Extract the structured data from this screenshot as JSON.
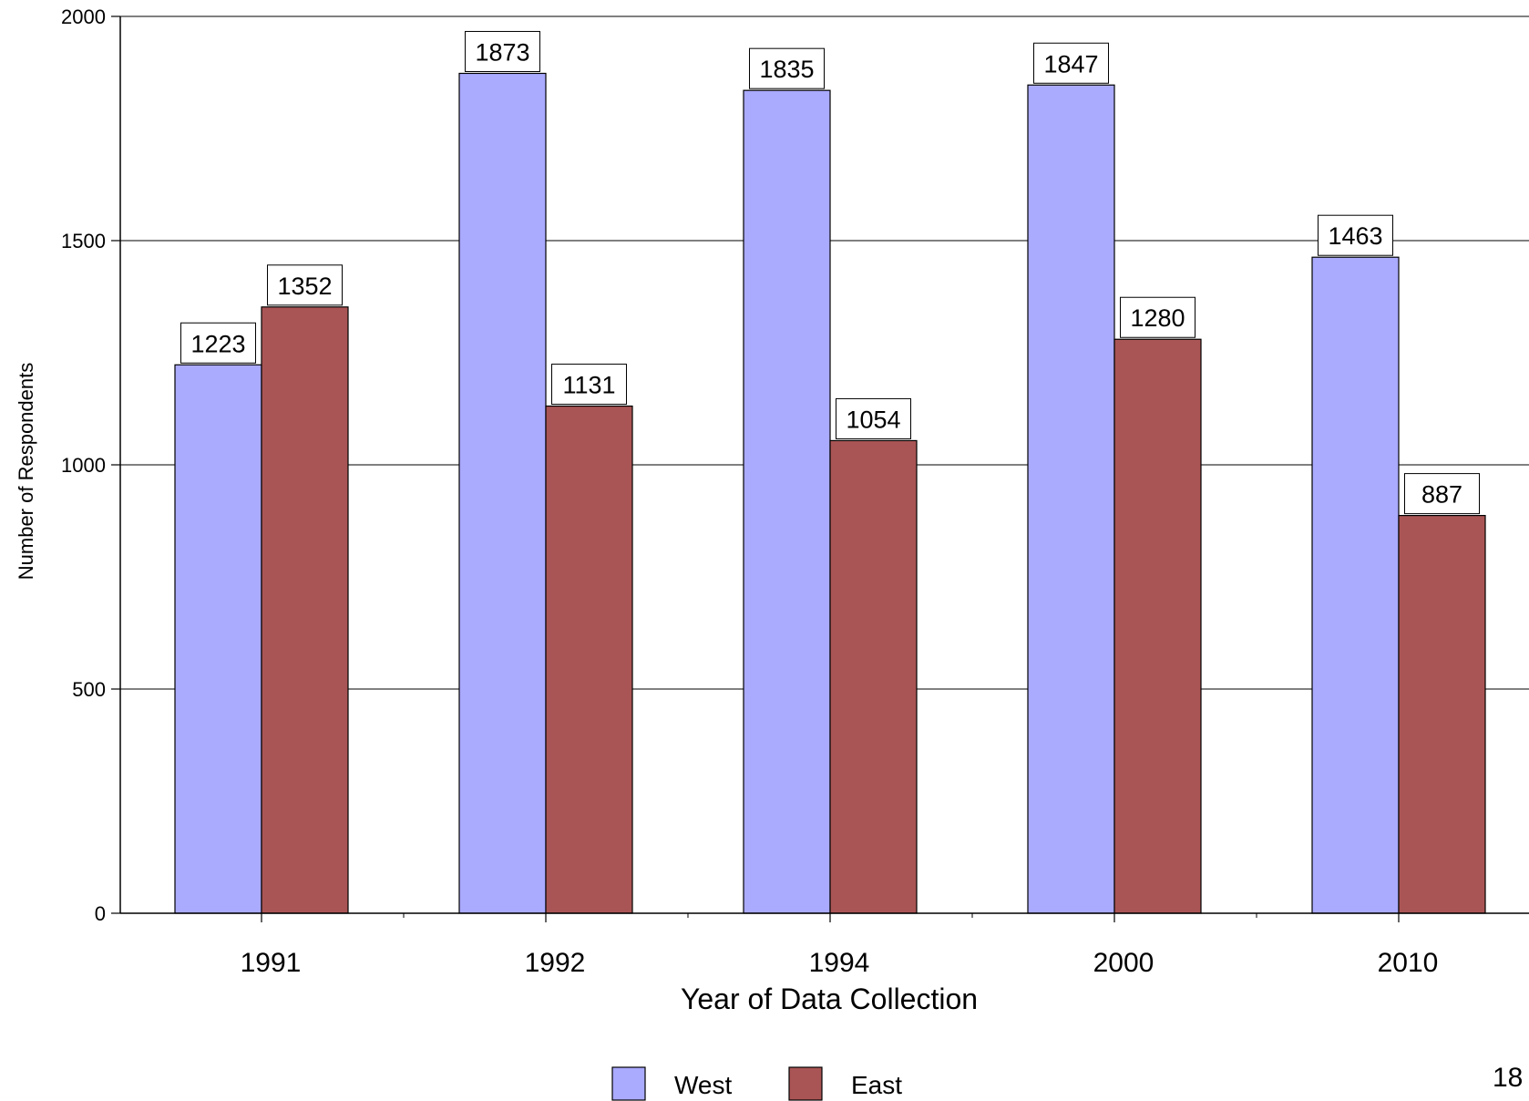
{
  "chart_data": {
    "type": "bar",
    "title": "",
    "xlabel": "Year of Data Collection",
    "ylabel": "Number of Respondents",
    "categories": [
      "1991",
      "1992",
      "1994",
      "2000",
      "2010"
    ],
    "series": [
      {
        "name": "West",
        "values": [
          1223,
          1873,
          1835,
          1847,
          1463
        ],
        "color": "#aaaaff"
      },
      {
        "name": "East",
        "values": [
          1352,
          1131,
          1054,
          1280,
          887
        ],
        "color": "#aa5555"
      }
    ],
    "ylim": [
      0,
      2000
    ],
    "yticks": [
      0,
      500,
      1000,
      1500,
      2000
    ],
    "grid": true,
    "legend_position": "bottom-center",
    "data_labels": true
  },
  "page": {
    "number": "18"
  }
}
